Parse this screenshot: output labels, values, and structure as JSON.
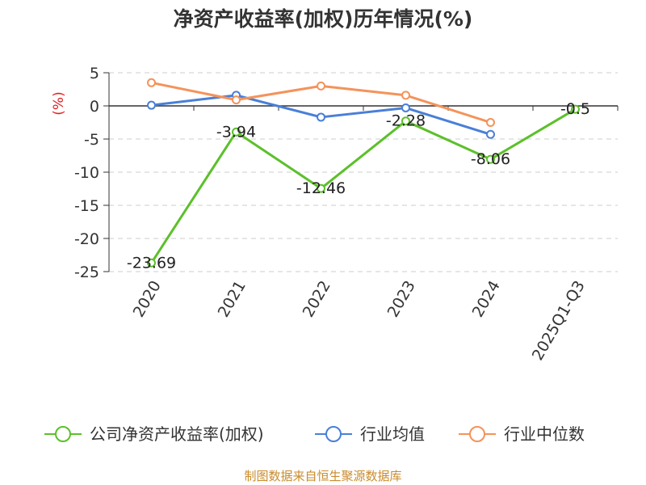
{
  "chart_data": {
    "type": "line",
    "title": "净资产收益率(加权)历年情况(%)",
    "ylabel": "(%)",
    "categories": [
      "2020",
      "2021",
      "2022",
      "2023",
      "2024",
      "2025Q1-Q3"
    ],
    "ylim": [
      -25,
      5
    ],
    "yticks": [
      5,
      0,
      -5,
      -10,
      -15,
      -20,
      -25
    ],
    "grid": true,
    "legend_position": "bottom",
    "series": [
      {
        "name": "公司净资产收益率(加权)",
        "color": "#5cc02a",
        "values": [
          -23.69,
          -3.94,
          -12.46,
          -2.28,
          -8.06,
          -0.5
        ],
        "labels": [
          "-23.69",
          "-3.94",
          "-12.46",
          "-2.28",
          "-8.06",
          "-0.5"
        ]
      },
      {
        "name": "行业均值",
        "color": "#4a7fd8",
        "values": [
          0.1,
          1.6,
          -1.7,
          -0.3,
          -4.3,
          null
        ]
      },
      {
        "name": "行业中位数",
        "color": "#f4935a",
        "values": [
          3.5,
          0.9,
          3.0,
          1.6,
          -2.5,
          null
        ]
      }
    ]
  },
  "source_note": "制图数据来自恒生聚源数据库"
}
